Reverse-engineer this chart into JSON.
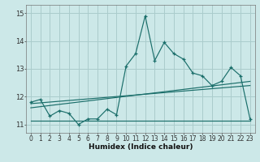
{
  "title": "",
  "xlabel": "Humidex (Indice chaleur)",
  "bg_color": "#cce8e8",
  "grid_color": "#aacccc",
  "line_color": "#1a6e6a",
  "xlim": [
    -0.5,
    23.5
  ],
  "ylim": [
    10.7,
    15.3
  ],
  "yticks": [
    11,
    12,
    13,
    14,
    15
  ],
  "ytick_labels": [
    "11",
    "12",
    "13",
    "14",
    "15"
  ],
  "xticks": [
    0,
    1,
    2,
    3,
    4,
    5,
    6,
    7,
    8,
    9,
    10,
    11,
    12,
    13,
    14,
    15,
    16,
    17,
    18,
    19,
    20,
    21,
    22,
    23
  ],
  "line1_x": [
    0,
    1,
    2,
    3,
    4,
    5,
    6,
    7,
    8,
    9,
    10,
    11,
    12,
    13,
    14,
    15,
    16,
    17,
    18,
    19,
    20,
    21,
    22,
    23
  ],
  "line1_y": [
    11.8,
    11.9,
    11.3,
    11.5,
    11.4,
    11.0,
    11.2,
    11.2,
    11.55,
    11.35,
    13.1,
    13.55,
    14.9,
    13.3,
    13.95,
    13.55,
    13.35,
    12.85,
    12.75,
    12.4,
    12.55,
    13.05,
    12.75,
    11.2
  ],
  "line2_x": [
    0,
    23
  ],
  "line2_y": [
    11.75,
    12.4
  ],
  "line3_x": [
    0,
    23
  ],
  "line3_y": [
    11.6,
    12.55
  ],
  "line4_x": [
    0,
    23
  ],
  "line4_y": [
    11.15,
    11.15
  ],
  "font_size_label": 6.5,
  "font_size_tick": 5.5
}
